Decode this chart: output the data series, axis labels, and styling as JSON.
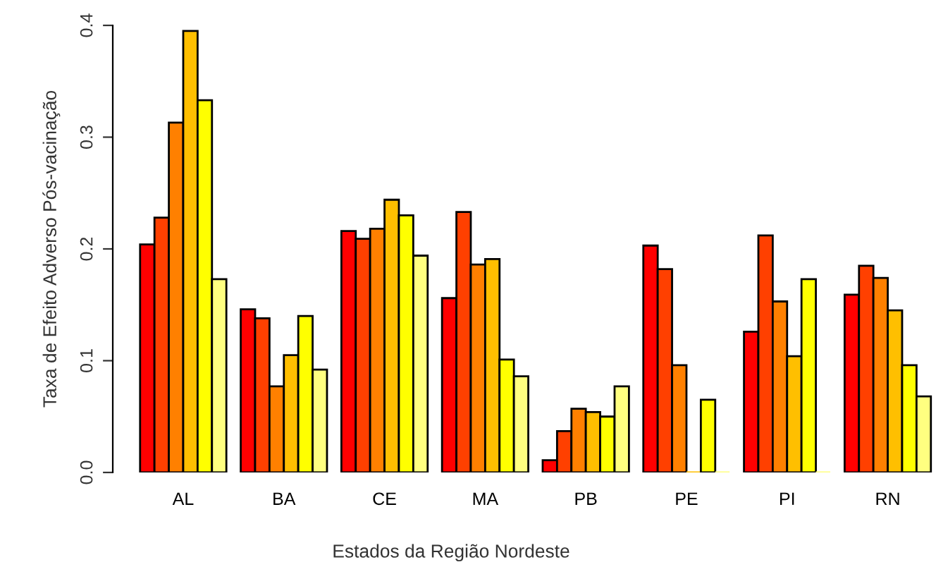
{
  "chart_data": {
    "type": "bar",
    "xlabel": "Estados da Região Nordeste",
    "ylabel": "Taxa de Efeito Adverso Pós-vacinação",
    "categories": [
      "AL",
      "BA",
      "CE",
      "MA",
      "PB",
      "PE",
      "PI",
      "RN"
    ],
    "series": [
      {
        "color": "#ff0000",
        "values": [
          0.204,
          0.146,
          0.216,
          0.156,
          0.011,
          0.203,
          0.126,
          0.159
        ]
      },
      {
        "color": "#ff4000",
        "values": [
          0.228,
          0.138,
          0.209,
          0.233,
          0.037,
          0.182,
          0.212,
          0.185
        ]
      },
      {
        "color": "#ff8000",
        "values": [
          0.313,
          0.077,
          0.218,
          0.186,
          0.057,
          0.096,
          0.153,
          0.174
        ]
      },
      {
        "color": "#ffbf00",
        "values": [
          0.395,
          0.105,
          0.244,
          0.191,
          0.054,
          0,
          0.104,
          0.145
        ]
      },
      {
        "color": "#ffff00",
        "values": [
          0.333,
          0.14,
          0.23,
          0.101,
          0.05,
          0.065,
          0.173,
          0.096
        ]
      },
      {
        "color": "#ffff80",
        "values": [
          0.173,
          0.092,
          0.194,
          0.086,
          0.077,
          0,
          0,
          0.068
        ]
      }
    ],
    "ylim": [
      0,
      0.4
    ],
    "yticks": [
      {
        "value": 0,
        "label": "0.0"
      },
      0.1,
      0.2,
      0.3,
      0.4
    ],
    "grid": false,
    "legend": false
  }
}
